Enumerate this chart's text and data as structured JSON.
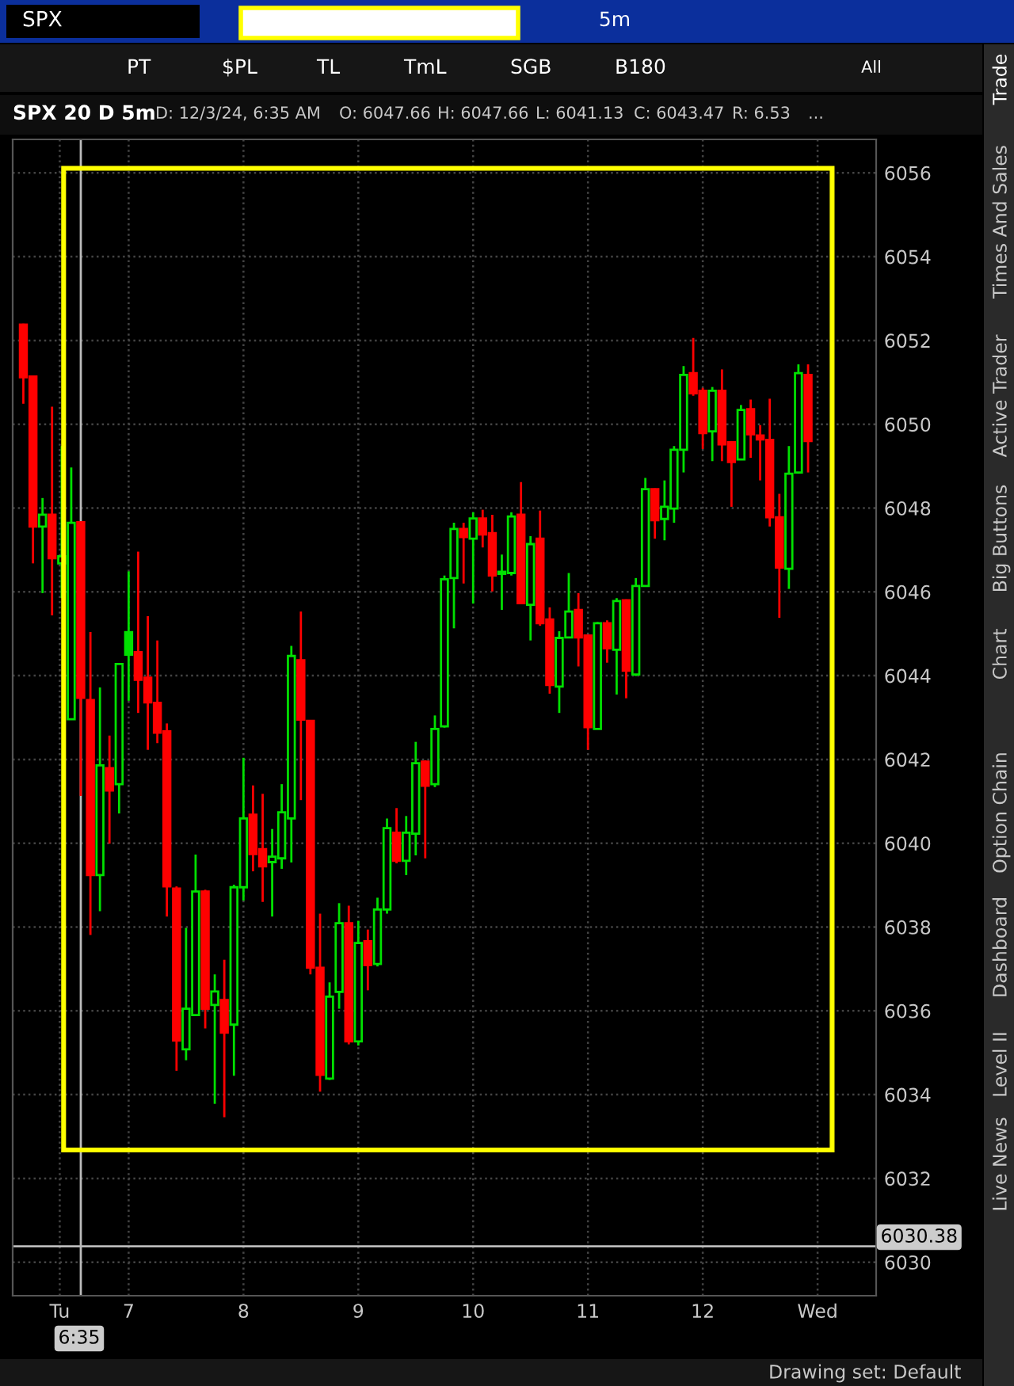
{
  "chart_data": {
    "type": "candlestick",
    "title": "SPX 20 D 5m",
    "annotations": [
      "SPX",
      "5m",
      "PT",
      "$PL",
      "TL",
      "TmL",
      "SGB",
      "B180",
      "All",
      "D: 12/3/24, 6:35 AM",
      "O: 6047.66",
      "H: 6047.66",
      "L: 6041.13",
      "C: 6043.47",
      "R: 6.53",
      "...",
      "Trade",
      "Times And Sales",
      "Active Trader",
      "Big Buttons",
      "Chart",
      "Option Chain",
      "Dashboard",
      "Level II",
      "Live News",
      "Drawing set: Default",
      "6:35"
    ],
    "x": [
      6.083,
      6.167,
      6.25,
      6.333,
      6.417,
      6.5,
      6.583,
      6.667,
      6.75,
      6.833,
      6.917,
      7.0,
      7.083,
      7.167,
      7.25,
      7.333,
      7.417,
      7.5,
      7.583,
      7.667,
      7.75,
      7.833,
      7.917,
      8.0,
      8.083,
      8.167,
      8.25,
      8.333,
      8.417,
      8.5,
      8.583,
      8.667,
      8.75,
      8.833,
      8.917,
      9.0,
      9.083,
      9.167,
      9.25,
      9.333,
      9.417,
      9.5,
      9.583,
      9.667,
      9.75,
      9.833,
      9.917,
      10.0,
      10.083,
      10.167,
      10.25,
      10.333,
      10.417,
      10.5,
      10.583,
      10.667,
      10.75,
      10.833,
      10.917,
      11.0,
      11.083,
      11.167,
      11.25,
      11.333,
      11.417,
      11.5,
      11.583,
      11.667,
      11.75,
      11.833,
      11.917,
      12.0,
      12.083,
      12.167,
      12.25,
      12.333,
      12.417,
      12.5,
      12.583,
      12.667,
      12.75,
      12.833,
      12.917
    ],
    "ohlc": [
      [
        6052.38,
        6052.4,
        6050.49,
        6051.12
      ],
      [
        6051.14,
        6051.14,
        6046.68,
        6047.56
      ],
      [
        6047.56,
        6048.24,
        6045.97,
        6047.84
      ],
      [
        6047.84,
        6050.42,
        6045.44,
        6046.8
      ],
      [
        6046.68,
        6049.48,
        6045.85,
        6046.85
      ],
      [
        6042.96,
        6048.97,
        6042.96,
        6047.65
      ],
      [
        6047.66,
        6047.66,
        6041.13,
        6043.47
      ],
      [
        6043.42,
        6045.04,
        6037.81,
        6039.24
      ],
      [
        6039.24,
        6043.72,
        6038.38,
        6041.86
      ],
      [
        6041.79,
        6042.57,
        6039.99,
        6041.26
      ],
      [
        6041.41,
        6044.28,
        6040.71,
        6044.28
      ],
      [
        6045.04,
        6046.49,
        6043.4,
        6044.5
      ],
      [
        6044.56,
        6046.96,
        6043.11,
        6043.9
      ],
      [
        6043.95,
        6045.42,
        6042.23,
        6043.36
      ],
      [
        6043.35,
        6044.84,
        6042.39,
        6042.64
      ],
      [
        6042.67,
        6042.86,
        6038.25,
        6038.97
      ],
      [
        6038.92,
        6038.97,
        6034.57,
        6035.29
      ],
      [
        6035.08,
        6037.98,
        6034.82,
        6036.05
      ],
      [
        6035.9,
        6039.73,
        6035.9,
        6038.85
      ],
      [
        6038.85,
        6038.89,
        6035.58,
        6036.05
      ],
      [
        6036.14,
        6036.87,
        6033.78,
        6036.46
      ],
      [
        6036.26,
        6037.22,
        6033.46,
        6035.48
      ],
      [
        6035.67,
        6039.01,
        6034.45,
        6038.95
      ],
      [
        6038.95,
        6042.04,
        6038.63,
        6040.59
      ],
      [
        6040.68,
        6041.38,
        6039.33,
        6039.74
      ],
      [
        6039.86,
        6041.18,
        6038.6,
        6039.45
      ],
      [
        6039.55,
        6040.34,
        6038.25,
        6039.68
      ],
      [
        6039.64,
        6041.41,
        6039.39,
        6040.74
      ],
      [
        6040.59,
        6044.71,
        6039.54,
        6044.47
      ],
      [
        6044.37,
        6045.53,
        6041.03,
        6042.95
      ],
      [
        6042.92,
        6042.92,
        6036.87,
        6037.03
      ],
      [
        6037.03,
        6038.32,
        6034.07,
        6034.47
      ],
      [
        6034.38,
        6036.68,
        6034.35,
        6036.34
      ],
      [
        6036.45,
        6038.57,
        6036.05,
        6038.09
      ],
      [
        6038.09,
        6038.51,
        6035.2,
        6035.27
      ],
      [
        6035.27,
        6038.15,
        6035.17,
        6037.62
      ],
      [
        6037.66,
        6037.94,
        6036.49,
        6037.09
      ],
      [
        6037.12,
        6038.7,
        6037.06,
        6038.42
      ],
      [
        6038.42,
        6040.59,
        6038.32,
        6040.36
      ],
      [
        6040.25,
        6040.84,
        6039.52,
        6039.58
      ],
      [
        6039.58,
        6040.65,
        6039.24,
        6040.25
      ],
      [
        6040.23,
        6042.42,
        6039.71,
        6041.91
      ],
      [
        6041.95,
        6041.98,
        6039.64,
        6041.37
      ],
      [
        6041.41,
        6043.05,
        6041.34,
        6042.73
      ],
      [
        6042.79,
        6046.39,
        6042.76,
        6046.3
      ],
      [
        6046.33,
        6047.65,
        6045.13,
        6047.5
      ],
      [
        6047.5,
        6047.65,
        6046.2,
        6047.31
      ],
      [
        6047.27,
        6047.9,
        6045.72,
        6047.75
      ],
      [
        6047.75,
        6047.96,
        6047.06,
        6047.37
      ],
      [
        6047.4,
        6047.84,
        6046.01,
        6046.39
      ],
      [
        6046.43,
        6046.89,
        6045.57,
        6046.48
      ],
      [
        6046.45,
        6047.9,
        6046.39,
        6047.8
      ],
      [
        6047.84,
        6048.62,
        6045.73,
        6045.73
      ],
      [
        6045.69,
        6047.33,
        6044.84,
        6047.14
      ],
      [
        6047.27,
        6047.94,
        6045.19,
        6045.25
      ],
      [
        6045.34,
        6045.63,
        6043.57,
        6043.78
      ],
      [
        6043.74,
        6045.06,
        6043.11,
        6044.9
      ],
      [
        6044.91,
        6046.45,
        6044.91,
        6045.53
      ],
      [
        6045.57,
        6045.97,
        6044.22,
        6044.91
      ],
      [
        6044.96,
        6044.96,
        6042.23,
        6042.77
      ],
      [
        6042.73,
        6045.28,
        6042.73,
        6045.25
      ],
      [
        6045.25,
        6045.32,
        6044.31,
        6044.65
      ],
      [
        6044.62,
        6045.85,
        6043.55,
        6045.78
      ],
      [
        6045.8,
        6045.82,
        6043.46,
        6044.12
      ],
      [
        6044.03,
        6046.33,
        6043.99,
        6046.14
      ],
      [
        6046.14,
        6048.72,
        6046.14,
        6048.45
      ],
      [
        6048.45,
        6048.47,
        6047.27,
        6047.71
      ],
      [
        6047.74,
        6048.66,
        6047.23,
        6048.03
      ],
      [
        6047.99,
        6049.48,
        6047.65,
        6049.39
      ],
      [
        6049.39,
        6051.39,
        6048.85,
        6051.18
      ],
      [
        6051.22,
        6052.06,
        6050.68,
        6050.74
      ],
      [
        6050.8,
        6050.87,
        6049.41,
        6049.79
      ],
      [
        6049.83,
        6050.89,
        6049.12,
        6050.8
      ],
      [
        6050.8,
        6051.31,
        6049.12,
        6049.52
      ],
      [
        6049.57,
        6049.6,
        6048.03,
        6049.1
      ],
      [
        6049.16,
        6050.46,
        6049.16,
        6050.34
      ],
      [
        6050.36,
        6050.59,
        6049.2,
        6049.76
      ],
      [
        6049.73,
        6049.98,
        6048.66,
        6049.64
      ],
      [
        6049.63,
        6050.61,
        6047.56,
        6047.78
      ],
      [
        6047.78,
        6048.34,
        6045.38,
        6046.58
      ],
      [
        6046.55,
        6049.48,
        6046.07,
        6048.82
      ],
      [
        6048.85,
        6051.43,
        6048.82,
        6051.22
      ],
      [
        6051.18,
        6051.43,
        6048.85,
        6049.6
      ]
    ],
    "colors": [
      "#ff0000",
      "#ff0000",
      "#00e000",
      "#ff0000",
      "#00e000",
      "#00e000",
      "#ff0000",
      "#ff0000",
      "#00e000",
      "#ff0000",
      "#00e000",
      "#00e000",
      "#ff0000",
      "#ff0000",
      "#ff0000",
      "#ff0000",
      "#ff0000",
      "#00e000",
      "#00e000",
      "#ff0000",
      "#00e000",
      "#ff0000",
      "#00e000",
      "#00e000",
      "#ff0000",
      "#ff0000",
      "#00e000",
      "#00e000",
      "#00e000",
      "#ff0000",
      "#ff0000",
      "#ff0000",
      "#00e000",
      "#00e000",
      "#ff0000",
      "#00e000",
      "#ff0000",
      "#00e000",
      "#00e000",
      "#ff0000",
      "#00e000",
      "#00e000",
      "#ff0000",
      "#00e000",
      "#00e000",
      "#00e000",
      "#ff0000",
      "#00e000",
      "#ff0000",
      "#ff0000",
      "#00e000",
      "#00e000",
      "#ff0000",
      "#00e000",
      "#ff0000",
      "#ff0000",
      "#00e000",
      "#00e000",
      "#ff0000",
      "#ff0000",
      "#00e000",
      "#ff0000",
      "#00e000",
      "#ff0000",
      "#00e000",
      "#00e000",
      "#ff0000",
      "#00e000",
      "#00e000",
      "#00e000",
      "#ff0000",
      "#ff0000",
      "#00e000",
      "#ff0000",
      "#ff0000",
      "#00e000",
      "#ff0000",
      "#ff0000",
      "#ff0000",
      "#ff0000",
      "#00e000",
      "#00e000",
      "#ff0000"
    ],
    "xlim": [
      5.99,
      13.51
    ],
    "ylim": [
      6029.2,
      6056.8
    ],
    "xticks": [
      {
        "value": 6.4,
        "label": "Tu"
      },
      {
        "value": 7,
        "label": "7"
      },
      {
        "value": 8,
        "label": "8"
      },
      {
        "value": 9,
        "label": "9"
      },
      {
        "value": 10,
        "label": "10"
      },
      {
        "value": 11,
        "label": "11"
      },
      {
        "value": 12,
        "label": "12"
      },
      {
        "value": 13,
        "label": "Wed"
      }
    ],
    "yticks": [
      6030,
      6032,
      6034,
      6036,
      6038,
      6040,
      6042,
      6044,
      6046,
      6048,
      6050,
      6052,
      6054,
      6056
    ],
    "ref_lines": [
      {
        "axis": "y",
        "value": 6030.38,
        "label": "6030.38",
        "color": "#bbbbbb",
        "line_style": "solid"
      },
      {
        "axis": "x",
        "value": 6.583333,
        "color": "#bbbbbb",
        "line_style": "solid"
      }
    ],
    "grid": true
  }
}
